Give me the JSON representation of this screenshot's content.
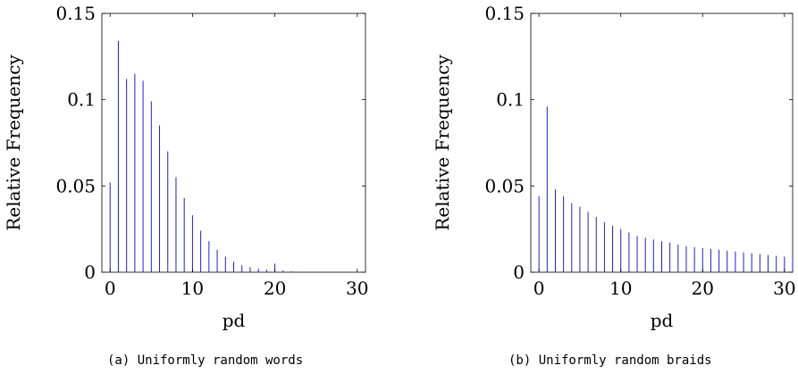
{
  "chart_data": [
    {
      "type": "bar",
      "caption": "(a) Uniformly random words",
      "xlabel": "pd",
      "ylabel": "Relative Frequency",
      "xlim": [
        -1,
        31
      ],
      "ylim": [
        0,
        0.15
      ],
      "xticks": [
        0,
        10,
        20,
        30
      ],
      "xtick_labels": [
        "0",
        "10",
        "20",
        "30"
      ],
      "yticks": [
        0,
        0.05,
        0.1,
        0.15
      ],
      "ytick_labels": [
        "0",
        "0.05",
        "0.1",
        "0.15"
      ],
      "bar_color": "#1f1fcc",
      "x": [
        0,
        1,
        2,
        3,
        4,
        5,
        6,
        7,
        8,
        9,
        10,
        11,
        12,
        13,
        14,
        15,
        16,
        17,
        18,
        19,
        20,
        21,
        22,
        23,
        24,
        25,
        26,
        27,
        28,
        29,
        30
      ],
      "values": [
        0.052,
        0.134,
        0.112,
        0.115,
        0.111,
        0.099,
        0.085,
        0.07,
        0.055,
        0.043,
        0.033,
        0.024,
        0.018,
        0.013,
        0.009,
        0.006,
        0.004,
        0.003,
        0.002,
        0.0015,
        0.005,
        0.001,
        0.0005,
        0.0003,
        0.0002,
        0.0001,
        0.0001,
        0.0001,
        0,
        0,
        0
      ]
    },
    {
      "type": "bar",
      "caption": "(b) Uniformly random braids",
      "xlabel": "pd",
      "ylabel": "Relative Frequency",
      "xlim": [
        -1,
        31
      ],
      "ylim": [
        0,
        0.15
      ],
      "xticks": [
        0,
        10,
        20,
        30
      ],
      "xtick_labels": [
        "0",
        "10",
        "20",
        "30"
      ],
      "yticks": [
        0,
        0.05,
        0.1,
        0.15
      ],
      "ytick_labels": [
        "0",
        "0.05",
        "0.1",
        "0.15"
      ],
      "bar_color": "#1f1fcc",
      "x": [
        0,
        1,
        2,
        3,
        4,
        5,
        6,
        7,
        8,
        9,
        10,
        11,
        12,
        13,
        14,
        15,
        16,
        17,
        18,
        19,
        20,
        21,
        22,
        23,
        24,
        25,
        26,
        27,
        28,
        29,
        30,
        31
      ],
      "values": [
        0.044,
        0.096,
        0.048,
        0.044,
        0.04,
        0.038,
        0.035,
        0.032,
        0.029,
        0.027,
        0.025,
        0.023,
        0.021,
        0.02,
        0.019,
        0.018,
        0.017,
        0.016,
        0.015,
        0.0145,
        0.014,
        0.0135,
        0.013,
        0.0125,
        0.012,
        0.0115,
        0.011,
        0.0105,
        0.01,
        0.0095,
        0.009,
        0.0085
      ]
    }
  ]
}
